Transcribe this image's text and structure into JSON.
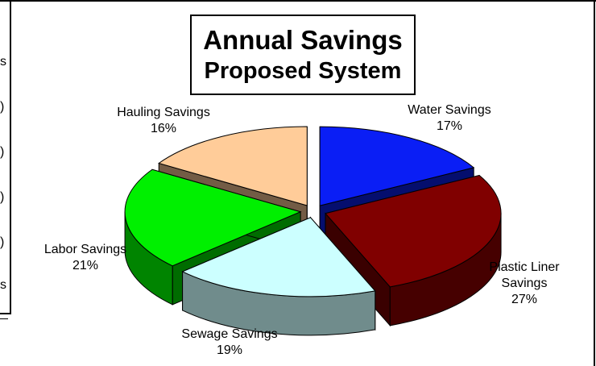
{
  "chart_data": {
    "type": "pie",
    "title": "Annual Savings",
    "subtitle": "Proposed System",
    "slices": [
      {
        "name": "Water Savings",
        "value": 17,
        "label": "17%",
        "color": "#0a1ef5"
      },
      {
        "name": "Plastic Liner Savings",
        "value": 27,
        "label": "27%",
        "color": "#800000"
      },
      {
        "name": "Sewage Savings",
        "value": 19,
        "label": "19%",
        "color": "#ccffff"
      },
      {
        "name": "Labor Savings",
        "value": 21,
        "label": "21%",
        "color": "#00f000"
      },
      {
        "name": "Hauling Savings",
        "value": 16,
        "label": "16%",
        "color": "#ffcc99"
      }
    ],
    "legend": "none",
    "grid": false
  },
  "edge_fragments": [
    "s",
    ")",
    ")",
    ")",
    ")",
    "s"
  ]
}
